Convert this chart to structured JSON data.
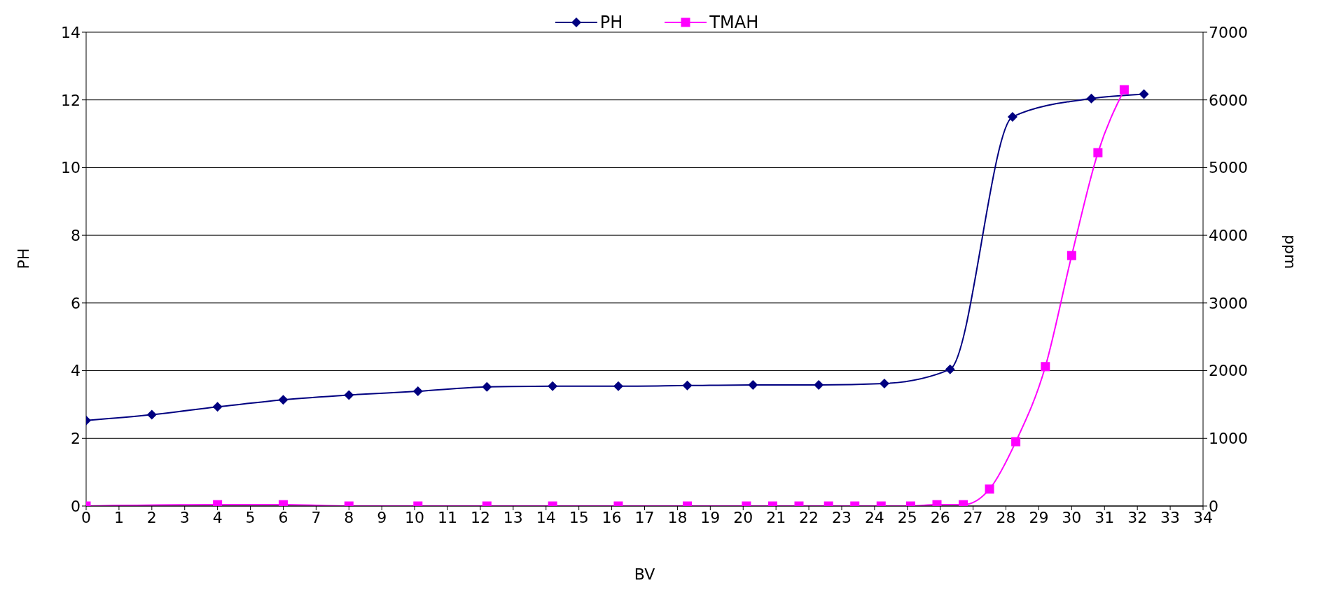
{
  "chart_data": {
    "type": "line",
    "xlabel": "BV",
    "ylabel": "PH",
    "y2label": "ppm",
    "xlim": [
      0,
      34
    ],
    "xticks": [
      0,
      1,
      2,
      3,
      4,
      5,
      6,
      7,
      8,
      9,
      10,
      11,
      12,
      13,
      14,
      15,
      16,
      17,
      18,
      19,
      20,
      21,
      22,
      23,
      24,
      25,
      26,
      27,
      28,
      29,
      30,
      31,
      32,
      33,
      34
    ],
    "ylim": [
      0,
      14
    ],
    "yticks": [
      0,
      2,
      4,
      6,
      8,
      10,
      12,
      14
    ],
    "y2lim": [
      0,
      7000
    ],
    "y2ticks": [
      0,
      1000,
      2000,
      3000,
      4000,
      5000,
      6000,
      7000
    ],
    "grid": "y",
    "legend": "top",
    "series": [
      {
        "name": "PH",
        "color": "#000080",
        "marker": "diamond",
        "x": [
          0,
          2,
          4,
          6,
          8,
          10.1,
          12.2,
          14.2,
          16.2,
          18.3,
          20.3,
          22.3,
          24.3,
          26.3,
          28.2,
          30.6,
          32.2
        ],
        "values": [
          2.53,
          2.7,
          2.93,
          3.14,
          3.28,
          3.39,
          3.52,
          3.54,
          3.54,
          3.56,
          3.58,
          3.58,
          3.62,
          4.04,
          11.5,
          12.04,
          12.17
        ]
      },
      {
        "name": "TMAH",
        "color": "#ff00ff",
        "marker": "square",
        "axis": "y2",
        "x": [
          0,
          4,
          6,
          8,
          10.1,
          12.2,
          14.2,
          16.2,
          18.3,
          20.1,
          20.9,
          21.7,
          22.6,
          23.4,
          24.2,
          25.1,
          25.9,
          26.7,
          27.5,
          28.3,
          29.2,
          30,
          30.8,
          31.6
        ],
        "values": [
          0,
          20,
          20,
          0,
          0,
          0,
          0,
          0,
          0,
          0,
          0,
          0,
          0,
          0,
          0,
          0,
          20,
          20,
          250,
          950,
          2060,
          3700,
          5220,
          6150
        ]
      }
    ]
  }
}
